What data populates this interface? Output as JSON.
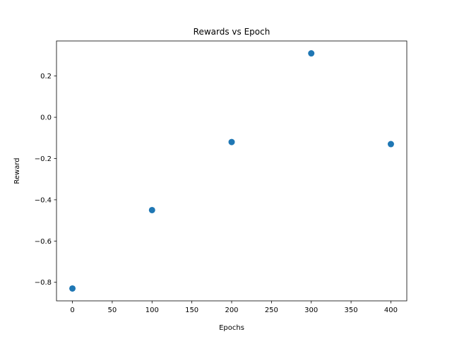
{
  "chart_data": {
    "type": "scatter",
    "title": "Rewards vs Epoch",
    "xlabel": "Epochs",
    "ylabel": "Reward",
    "xlim": [
      -20,
      420
    ],
    "ylim": [
      -0.89,
      0.37
    ],
    "x_ticks": [
      0,
      50,
      100,
      150,
      200,
      250,
      300,
      350,
      400
    ],
    "x_tick_labels": [
      "0",
      "50",
      "100",
      "150",
      "200",
      "250",
      "300",
      "350",
      "400"
    ],
    "y_ticks": [
      -0.8,
      -0.6,
      -0.4,
      -0.2,
      0.0,
      0.2
    ],
    "y_tick_labels": [
      "−0.8",
      "−0.6",
      "−0.4",
      "−0.2",
      "0.0",
      "0.2"
    ],
    "grid": false,
    "series": [
      {
        "color": "#1f77b4",
        "points": [
          {
            "x": 0,
            "y": -0.83
          },
          {
            "x": 100,
            "y": -0.45
          },
          {
            "x": 200,
            "y": -0.12
          },
          {
            "x": 300,
            "y": 0.31
          },
          {
            "x": 400,
            "y": -0.13
          }
        ]
      }
    ]
  }
}
